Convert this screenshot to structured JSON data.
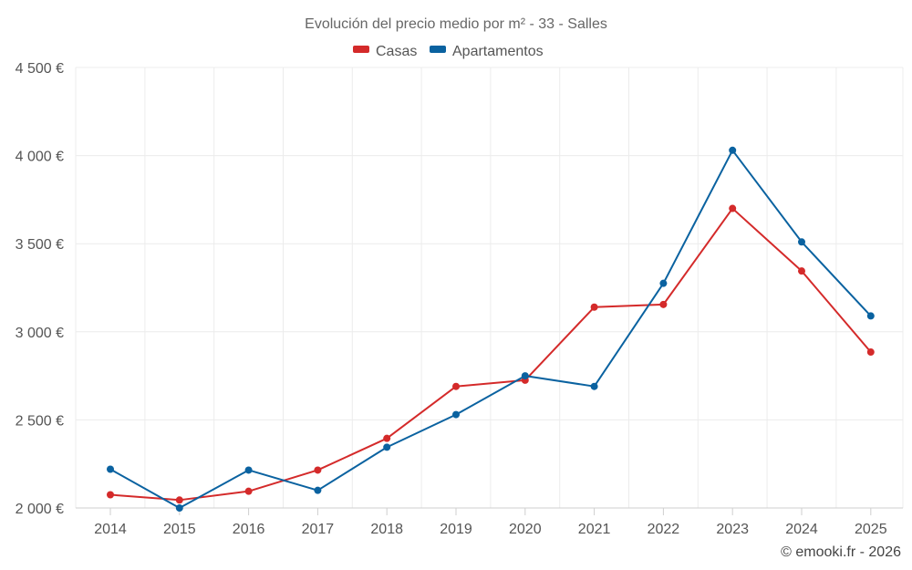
{
  "chart_data": {
    "type": "line",
    "title": "Evolución del precio medio por m² - 33 - Salles",
    "categories": [
      "2014",
      "2015",
      "2016",
      "2017",
      "2018",
      "2019",
      "2020",
      "2021",
      "2022",
      "2023",
      "2024",
      "2025"
    ],
    "series": [
      {
        "name": "Casas",
        "color": "#d42a2a",
        "values": [
          2075,
          2045,
          2095,
          2215,
          2395,
          2690,
          2725,
          3140,
          3155,
          3700,
          3345,
          2885
        ]
      },
      {
        "name": "Apartamentos",
        "color": "#0a62a0",
        "values": [
          2220,
          2000,
          2215,
          2100,
          2345,
          2530,
          2750,
          2690,
          3275,
          4030,
          3510,
          3090
        ]
      }
    ],
    "yticks": [
      2000,
      2500,
      3000,
      3500,
      4000,
      4500
    ],
    "ytick_labels": [
      "2 000 €",
      "2 500 €",
      "3 000 €",
      "3 500 €",
      "4 000 €",
      "4 500 €"
    ],
    "ylim": [
      2000,
      4500
    ],
    "xlabel": "",
    "ylabel": "",
    "legend_position": "top-center",
    "grid": true
  },
  "credit": "© emooki.fr - 2026"
}
